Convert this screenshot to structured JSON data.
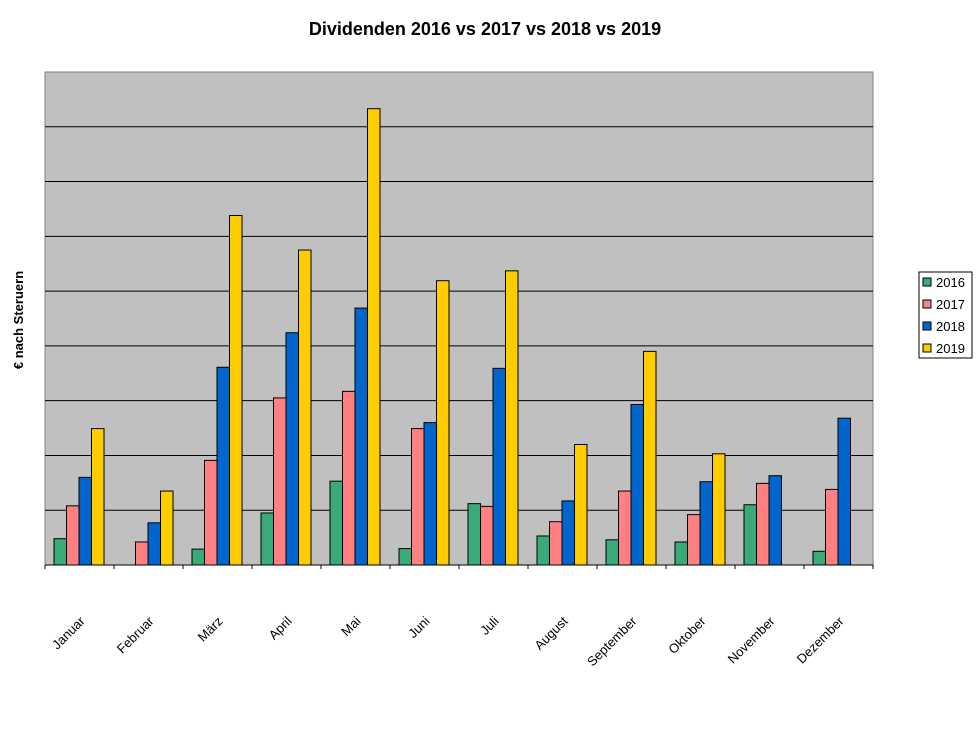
{
  "chart_data": {
    "type": "bar",
    "title": "Dividenden 2016 vs 2017 vs 2018 vs 2019",
    "ylabel": "€ nach Steruern",
    "xlabel": "",
    "categories": [
      "Januar",
      "Februar",
      "März",
      "April",
      "Mai",
      "Juni",
      "Juli",
      "August",
      "September",
      "Oktober",
      "November",
      "Dezember"
    ],
    "ylim": [
      0,
      9
    ],
    "y_tick_labels_shown": false,
    "grid": true,
    "legend_position": "right",
    "plot_background": "#c0c0c0",
    "series": [
      {
        "name": "2016",
        "color": "#3aaa78",
        "values": [
          0.48,
          null,
          0.29,
          0.95,
          1.53,
          0.3,
          1.12,
          0.53,
          0.46,
          0.42,
          1.1,
          0.25
        ]
      },
      {
        "name": "2017",
        "color": "#ff8080",
        "values": [
          1.08,
          0.42,
          1.91,
          3.05,
          3.17,
          2.49,
          1.07,
          0.79,
          1.35,
          0.92,
          1.49,
          1.38
        ]
      },
      {
        "name": "2018",
        "color": "#0066cc",
        "values": [
          1.6,
          0.77,
          3.61,
          4.24,
          4.69,
          2.6,
          3.59,
          1.17,
          2.93,
          1.52,
          1.63,
          2.68
        ]
      },
      {
        "name": "2019",
        "color": "#ffcc00",
        "values": [
          2.49,
          1.35,
          6.38,
          5.75,
          8.33,
          5.19,
          5.37,
          2.2,
          3.9,
          2.03,
          null,
          null
        ]
      }
    ]
  }
}
